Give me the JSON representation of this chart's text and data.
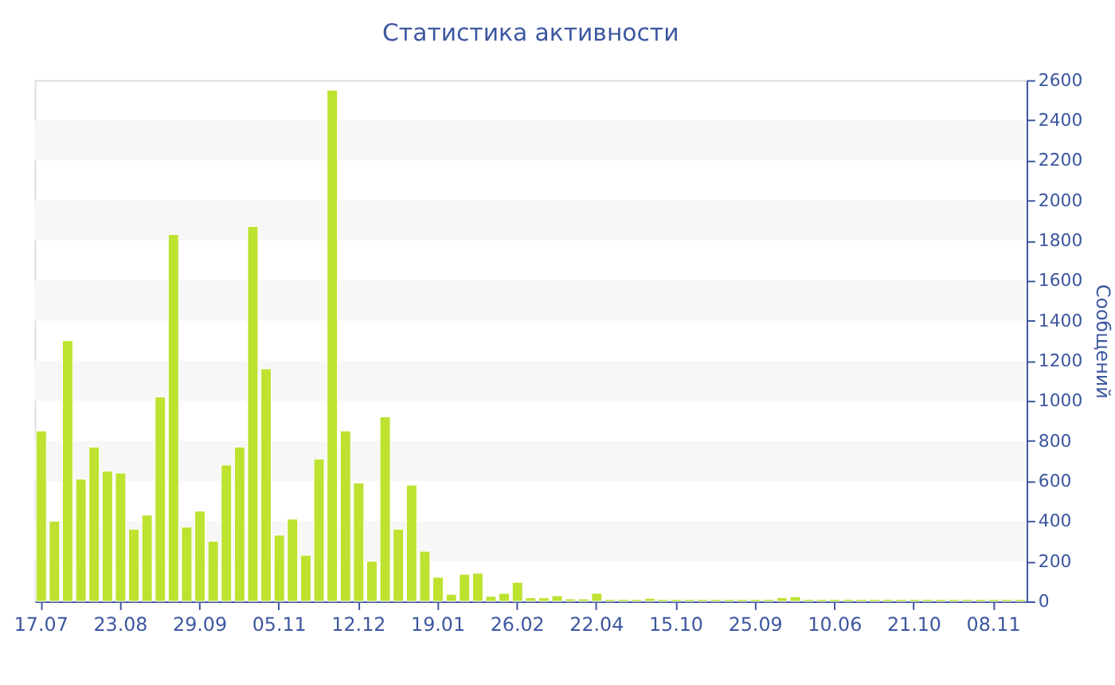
{
  "chart_data": {
    "type": "bar",
    "title": "Статистика активности",
    "ylabel": "Сообщений",
    "categories": [
      "17.07",
      null,
      null,
      null,
      null,
      null,
      "23.08",
      null,
      null,
      null,
      null,
      null,
      "29.09",
      null,
      null,
      null,
      null,
      null,
      "05.11",
      null,
      null,
      null,
      null,
      null,
      "12.12",
      null,
      null,
      null,
      null,
      null,
      "19.01",
      null,
      null,
      null,
      null,
      null,
      "26.02",
      null,
      null,
      null,
      null,
      null,
      "22.04",
      null,
      null,
      null,
      null,
      null,
      "15.10",
      null,
      null,
      null,
      null,
      null,
      "25.09",
      null,
      null,
      null,
      null,
      null,
      "10.06",
      null,
      null,
      null,
      null,
      null,
      "21.10",
      null,
      null,
      null,
      null,
      null,
      "08.11",
      null,
      null
    ],
    "values": [
      850,
      400,
      1300,
      610,
      770,
      650,
      640,
      360,
      430,
      1020,
      1830,
      370,
      450,
      300,
      680,
      770,
      1870,
      1160,
      330,
      410,
      230,
      710,
      2550,
      850,
      590,
      200,
      920,
      360,
      580,
      250,
      120,
      35,
      135,
      140,
      25,
      40,
      95,
      18,
      18,
      28,
      12,
      12,
      40,
      10,
      10,
      10,
      15,
      10,
      10,
      10,
      10,
      10,
      10,
      10,
      10,
      10,
      18,
      23,
      10,
      10,
      10,
      10,
      10,
      10,
      10,
      10,
      10,
      10,
      10,
      10,
      10,
      10,
      10,
      10,
      10
    ],
    "color": "#bde22f",
    "ylim": [
      0,
      2600
    ],
    "yticks": [
      0,
      200,
      400,
      600,
      800,
      1000,
      1200,
      1400,
      1600,
      1800,
      2000,
      2200,
      2400,
      2600
    ],
    "bands": [
      {
        "axis": "y",
        "from": 200,
        "to": 400,
        "color": "#f7f7f7"
      },
      {
        "axis": "y",
        "from": 600,
        "to": 800,
        "color": "#f7f7f7"
      },
      {
        "axis": "y",
        "from": 1000,
        "to": 1200,
        "color": "#f7f7f7"
      },
      {
        "axis": "y",
        "from": 1400,
        "to": 1600,
        "color": "#f7f7f7"
      },
      {
        "axis": "y",
        "from": 1800,
        "to": 2000,
        "color": "#f7f7f7"
      },
      {
        "axis": "y",
        "from": 2200,
        "to": 2400,
        "color": "#f7f7f7"
      }
    ]
  }
}
